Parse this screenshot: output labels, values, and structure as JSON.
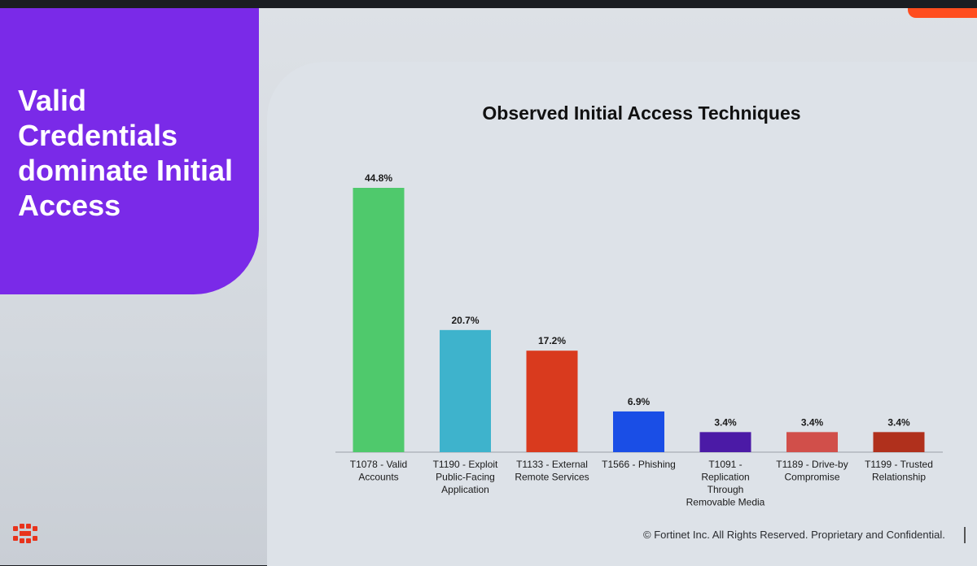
{
  "slide": {
    "headline": "Valid Credentials dominate Initial Access",
    "footer": "© Fortinet Inc. All Rights Reserved. Proprietary and Confidential.",
    "logo_icon": "fortinet-logo-icon",
    "colors": {
      "panel": "#7a2ae8",
      "accent": "#ff4d1f"
    }
  },
  "chart_data": {
    "type": "bar",
    "title": "Observed Initial Access Techniques",
    "categories": [
      [
        "T1078 - Valid",
        "Accounts"
      ],
      [
        "T1190 - Exploit",
        "Public-Facing",
        "Application"
      ],
      [
        "T1133 - External",
        "Remote Services"
      ],
      [
        "T1566 - Phishing"
      ],
      [
        "T1091 -",
        "Replication",
        "Through",
        "Removable Media"
      ],
      [
        "T1189 - Drive-by",
        "Compromise"
      ],
      [
        "T1199 - Trusted",
        "Relationship"
      ]
    ],
    "values": [
      44.8,
      20.7,
      17.2,
      6.9,
      3.4,
      3.4,
      3.4
    ],
    "labels": [
      "44.8%",
      "20.7%",
      "17.2%",
      "6.9%",
      "3.4%",
      "3.4%",
      "3.4%"
    ],
    "colors": [
      "#4fc96c",
      "#3eb3cc",
      "#d93a1e",
      "#1a4ee6",
      "#4b1aa6",
      "#d14f4a",
      "#b0301c"
    ],
    "ylim": [
      0,
      44.8
    ],
    "grid": false,
    "legend": "none"
  }
}
